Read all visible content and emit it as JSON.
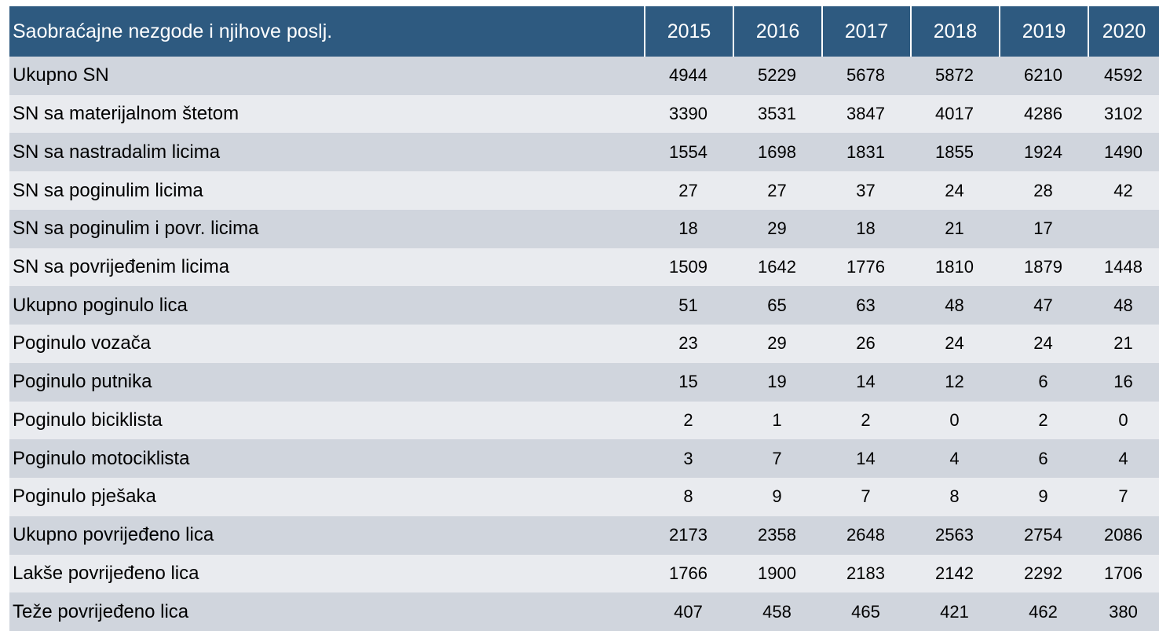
{
  "table": {
    "columns": [
      "Saobraćajne nezgode i njihove poslj.",
      2015,
      2016,
      2017,
      2018,
      2019,
      2020
    ],
    "rows": [
      [
        "Ukupno SN",
        4944,
        5229,
        5678,
        5872,
        6210,
        4592
      ],
      [
        "SN sa materijalnom štetom",
        3390,
        3531,
        3847,
        4017,
        4286,
        3102
      ],
      [
        "SN sa nastradalim licima",
        1554,
        1698,
        1831,
        1855,
        1924,
        1490
      ],
      [
        "SN sa poginulim licima",
        27,
        27,
        37,
        24,
        28,
        42
      ],
      [
        "SN sa poginulim i povr. licima",
        18,
        29,
        18,
        21,
        17,
        null
      ],
      [
        "SN sa povrijeđenim licima",
        1509,
        1642,
        1776,
        1810,
        1879,
        1448
      ],
      [
        "Ukupno poginulo lica",
        51,
        65,
        63,
        48,
        47,
        48
      ],
      [
        "Poginulo vozača",
        23,
        29,
        26,
        24,
        24,
        21
      ],
      [
        "Poginulo putnika",
        15,
        19,
        14,
        12,
        6,
        16
      ],
      [
        "Poginulo biciklista",
        2,
        1,
        2,
        0,
        2,
        0
      ],
      [
        "Poginulo motociklista",
        3,
        7,
        14,
        4,
        6,
        4
      ],
      [
        "Poginulo pješaka",
        8,
        9,
        7,
        8,
        9,
        7
      ],
      [
        "Ukupno povrijeđeno lica",
        2173,
        2358,
        2648,
        2563,
        2754,
        2086
      ],
      [
        "Lakše povrijeđeno lica",
        1766,
        1900,
        2183,
        2142,
        2292,
        1706
      ],
      [
        "Teže povrijeđeno lica",
        407,
        458,
        465,
        421,
        462,
        380
      ]
    ]
  }
}
